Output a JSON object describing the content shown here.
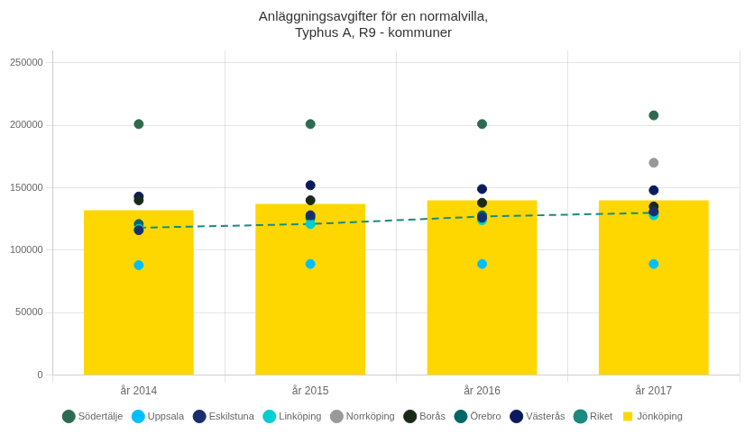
{
  "chart_data": {
    "type": "bar",
    "title": "Anläggningsavgifter för en normalvilla,\nTyphus A, R9 - kommuner",
    "categories": [
      "år 2014",
      "år 2015",
      "år 2016",
      "år 2017"
    ],
    "series": [
      {
        "name": "Jönköping",
        "type": "bar",
        "color": "#FFD700",
        "values": [
          132000,
          137000,
          140000,
          140000
        ]
      },
      {
        "name": "Riket",
        "type": "line",
        "color": "#1a8a80",
        "line_style": "dashed",
        "marker": "circle",
        "values": [
          118000,
          121000,
          127000,
          130000
        ]
      },
      {
        "name": "Södertälje",
        "type": "scatter",
        "color": "#2d6a4f",
        "marker": "circle",
        "values": [
          201000,
          201000,
          201000,
          208000
        ]
      },
      {
        "name": "Uppsala",
        "type": "scatter",
        "color": "#00BFFF",
        "marker": "circle",
        "values": [
          88000,
          89000,
          89000,
          89000
        ]
      },
      {
        "name": "Eskilstuna",
        "type": "scatter",
        "color": "#1a2e6e",
        "marker": "circle",
        "values": [
          116000,
          128000,
          126000,
          131000
        ]
      },
      {
        "name": "Linköping",
        "type": "scatter",
        "color": "#00CED1",
        "marker": "circle",
        "values": [
          117000,
          121000,
          124000,
          128000
        ]
      },
      {
        "name": "Norrköping",
        "type": "scatter",
        "color": "#999999",
        "marker": "circle",
        "values": [
          null,
          null,
          null,
          170000
        ]
      },
      {
        "name": "Borås",
        "type": "scatter",
        "color": "#1a2a1a",
        "marker": "circle",
        "values": [
          140000,
          140000,
          138000,
          135000
        ]
      },
      {
        "name": "Örebro",
        "type": "scatter",
        "color": "#006666",
        "marker": "circle",
        "values": [
          121000,
          126000,
          128000,
          130000
        ]
      },
      {
        "name": "Västerås",
        "type": "scatter",
        "color": "#0a1a5e",
        "marker": "circle",
        "values": [
          143000,
          152000,
          149000,
          148000
        ]
      }
    ],
    "ylim": [
      0,
      260000
    ],
    "yticks": [
      0,
      50000,
      100000,
      150000,
      200000,
      250000
    ],
    "grid": true,
    "legend": "bottom"
  }
}
